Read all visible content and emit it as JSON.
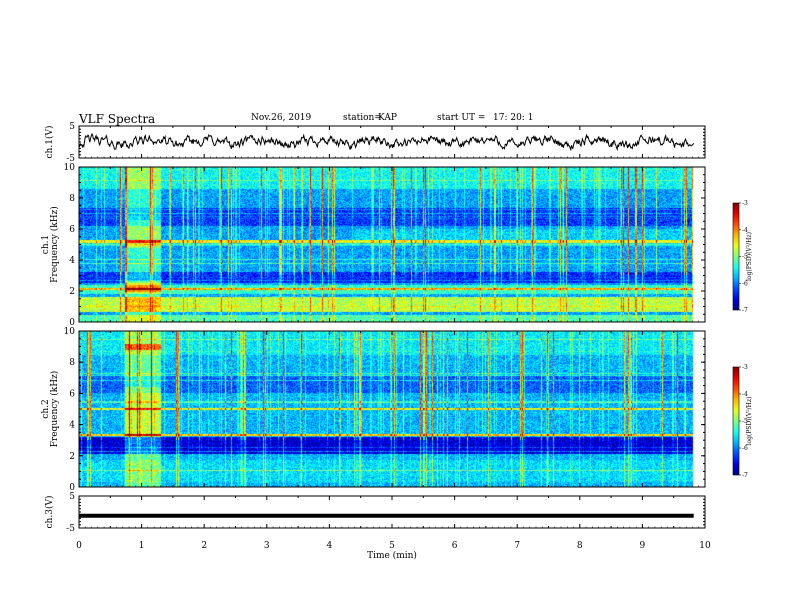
{
  "header": {
    "title": "VLF Spectra",
    "date": "Nov.26, 2019",
    "station_label": "station=",
    "station": "KAP",
    "start_label": "start UT =",
    "start_time": "17: 20: 1"
  },
  "chart_data": [
    {
      "id": "ch1-voltage",
      "type": "line",
      "ylabel": "ch.1(V)",
      "ylim": [
        -5,
        5
      ],
      "yticks": [
        5,
        -5
      ],
      "xlim": [
        0,
        10
      ],
      "note": "noisy waveform around ~0 V"
    },
    {
      "id": "ch1-spectrogram",
      "type": "heatmap",
      "ylabel_line1": "ch.1",
      "ylabel_line2": "Frequency (kHz)",
      "ylim": [
        0,
        10
      ],
      "yticks": [
        0,
        2,
        4,
        6,
        8,
        10
      ],
      "xlim": [
        0,
        10
      ],
      "colorbar": {
        "label": "log(PSD)(V²/Hz)",
        "range": [
          -7,
          -3
        ],
        "ticks": [
          -3,
          -4,
          -5,
          -6,
          -7
        ]
      }
    },
    {
      "id": "ch2-spectrogram",
      "type": "heatmap",
      "ylabel_line1": "ch.2",
      "ylabel_line2": "Frequency (kHz)",
      "ylim": [
        0,
        10
      ],
      "yticks": [
        0,
        2,
        4,
        6,
        8,
        10
      ],
      "xlim": [
        0,
        10
      ],
      "colorbar": {
        "label": "log(PSD)(V²/Hz)",
        "range": [
          -7,
          -3
        ],
        "ticks": [
          -3,
          -4,
          -5,
          -6,
          -7
        ]
      }
    },
    {
      "id": "ch3-voltage",
      "type": "line",
      "ylabel": "ch.3(V)",
      "ylim": [
        -5,
        5
      ],
      "yticks": [
        5,
        -5
      ],
      "xlim": [
        0,
        10
      ],
      "x": [
        0,
        9.82
      ],
      "y": [
        -1.2,
        -1.2
      ]
    }
  ],
  "xaxis": {
    "label": "Time (min)",
    "ticks": [
      0,
      1,
      2,
      3,
      4,
      5,
      6,
      7,
      8,
      9,
      10
    ]
  }
}
